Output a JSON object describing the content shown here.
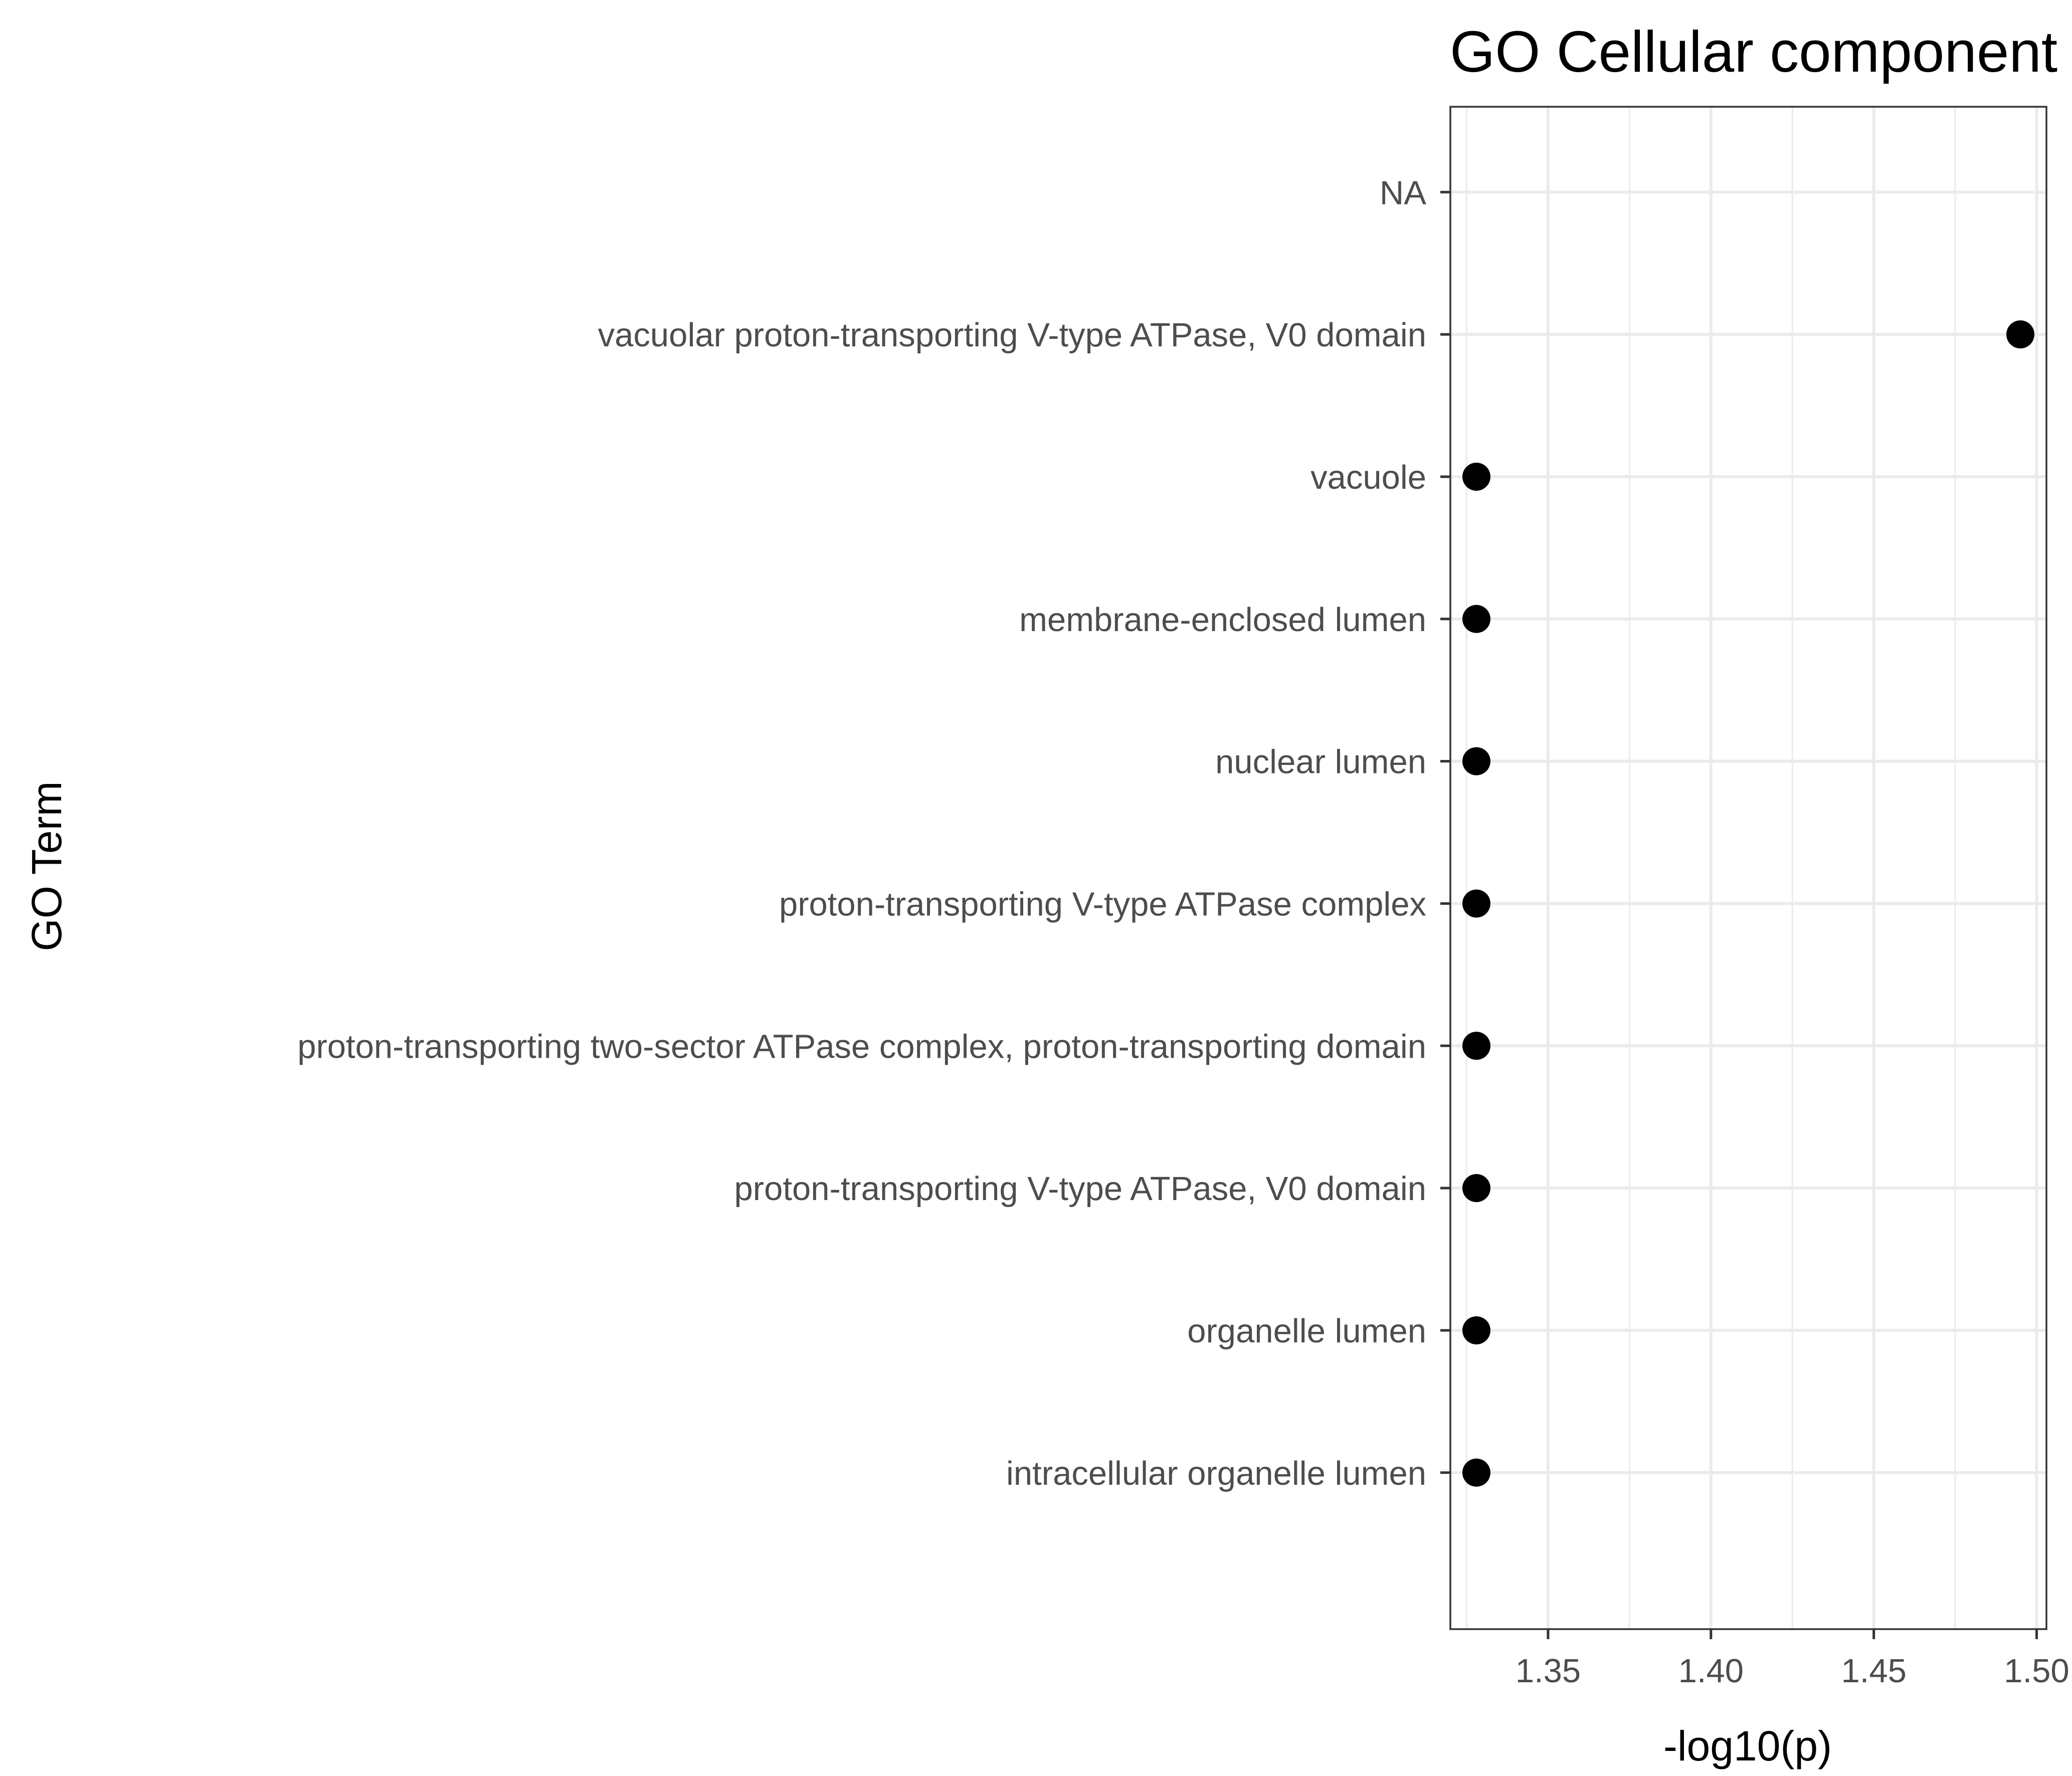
{
  "chart_data": {
    "type": "scatter",
    "title": "GO Cellular component",
    "xlabel": "-log10(p)",
    "ylabel": "GO Term",
    "xlim": [
      1.32,
      1.503
    ],
    "x_ticks": [
      1.35,
      1.4,
      1.45,
      1.5
    ],
    "x_tick_labels": [
      "1.35",
      "1.40",
      "1.45",
      "1.50"
    ],
    "grid": true,
    "categories": [
      "NA",
      "vacuolar proton-transporting V-type ATPase, V0 domain",
      "vacuole",
      "membrane-enclosed lumen",
      "nuclear lumen",
      "proton-transporting V-type ATPase complex",
      "proton-transporting two-sector ATPase complex, proton-transporting domain",
      "proton-transporting V-type ATPase, V0 domain",
      "organelle lumen",
      "intracellular organelle lumen"
    ],
    "points": [
      {
        "category": "NA",
        "x": null
      },
      {
        "category": "vacuolar proton-transporting V-type ATPase, V0 domain",
        "x": 1.495
      },
      {
        "category": "vacuole",
        "x": 1.328
      },
      {
        "category": "membrane-enclosed lumen",
        "x": 1.328
      },
      {
        "category": "nuclear lumen",
        "x": 1.328
      },
      {
        "category": "proton-transporting V-type ATPase complex",
        "x": 1.328
      },
      {
        "category": "proton-transporting two-sector ATPase complex, proton-transporting domain",
        "x": 1.328
      },
      {
        "category": "proton-transporting V-type ATPase, V0 domain",
        "x": 1.328
      },
      {
        "category": "organelle lumen",
        "x": 1.328
      },
      {
        "category": "intracellular organelle lumen",
        "x": 1.328
      }
    ],
    "point_color": "#000000",
    "panel_border_color": "#333333",
    "grid_color": "#ebebeb"
  }
}
